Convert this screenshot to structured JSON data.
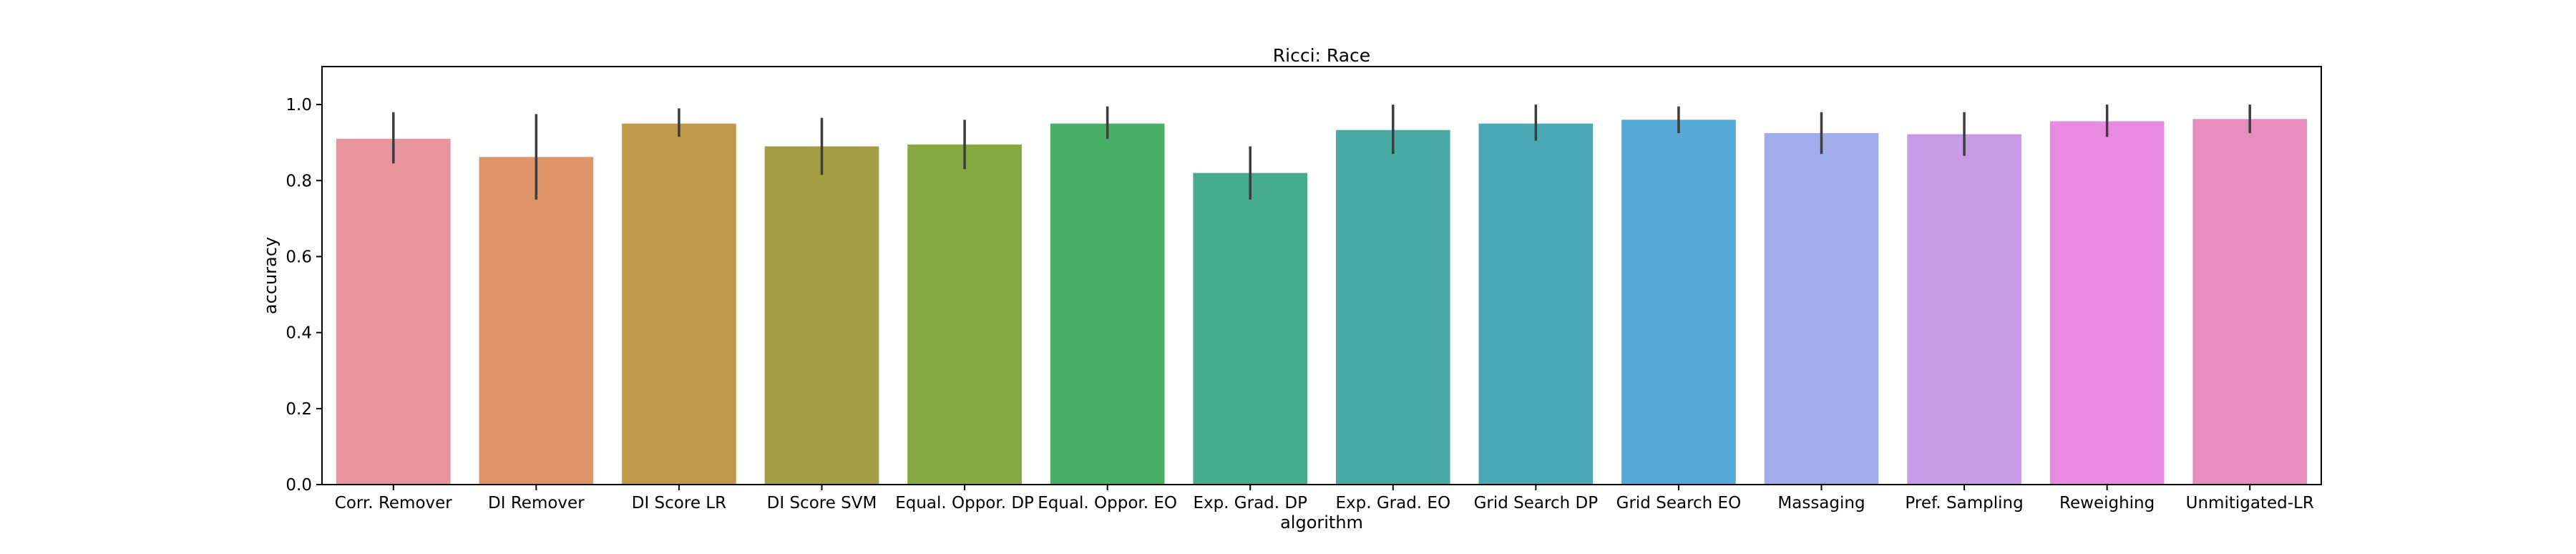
{
  "chart_data": {
    "type": "bar",
    "title": "Ricci: Race",
    "xlabel": "algorithm",
    "ylabel": "accuracy",
    "ylim": [
      0,
      1.1
    ],
    "yticks": [
      "0.0",
      "0.2",
      "0.4",
      "0.6",
      "0.8",
      "1.0"
    ],
    "grid": false,
    "categories": [
      "Corr. Remover",
      "DI Remover",
      "DI Score LR",
      "DI Score SVM",
      "Equal. Oppor. DP",
      "Equal. Oppor. EO",
      "Exp. Grad. DP",
      "Exp. Grad. EO",
      "Grid Search DP",
      "Grid Search EO",
      "Massaging",
      "Pref. Sampling",
      "Reweighing",
      "Unmitigated-LR"
    ],
    "values": [
      0.91,
      0.862,
      0.95,
      0.89,
      0.895,
      0.95,
      0.82,
      0.933,
      0.95,
      0.96,
      0.925,
      0.922,
      0.956,
      0.962
    ],
    "error_low": [
      0.845,
      0.75,
      0.915,
      0.815,
      0.83,
      0.91,
      0.75,
      0.87,
      0.905,
      0.925,
      0.87,
      0.865,
      0.915,
      0.925
    ],
    "error_high": [
      0.98,
      0.975,
      0.99,
      0.965,
      0.96,
      0.995,
      0.89,
      1.0,
      1.0,
      0.995,
      0.98,
      0.98,
      1.0,
      1.0
    ],
    "colors": [
      "#e8949f",
      "#e0926a",
      "#c09a4a",
      "#a39d45",
      "#86a843",
      "#48b065",
      "#48ab8d",
      "#49aaa3",
      "#4aa9b5",
      "#56a8d6",
      "#a1acea",
      "#c89be6",
      "#e88ae0",
      "#e68fbf"
    ]
  }
}
